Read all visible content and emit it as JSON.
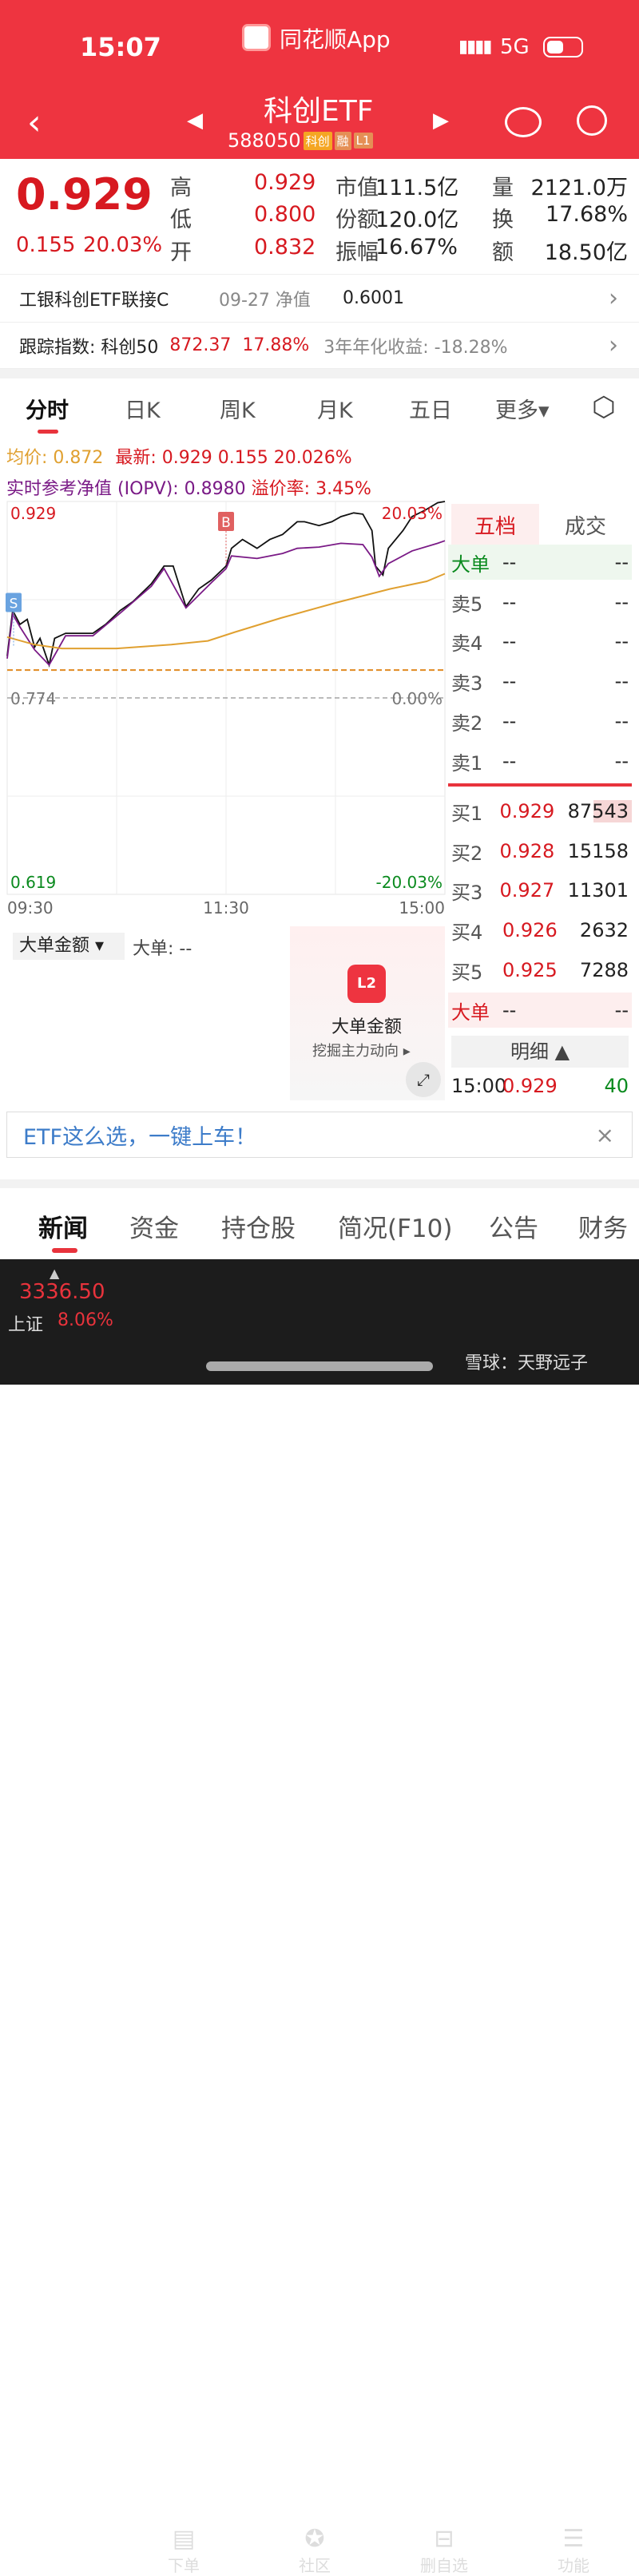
{
  "status": {
    "time": "15:07",
    "app": "同花顺App",
    "network": "5G"
  },
  "header": {
    "title": "科创ETF",
    "code": "588050",
    "tags": [
      "科创",
      "融",
      "L1"
    ]
  },
  "quote": {
    "price": "0.929",
    "change": "0.155",
    "change_pct": "20.03%",
    "stats": [
      [
        "高",
        "0.929",
        "市值",
        "111.5亿",
        "量",
        "2121.0万"
      ],
      [
        "低",
        "0.800",
        "份额",
        "120.0亿",
        "换",
        "17.68%"
      ],
      [
        "开",
        "0.832",
        "振幅",
        "16.67%",
        "额",
        "18.50亿"
      ]
    ]
  },
  "link_fund": {
    "name": "工银科创ETF联接C",
    "date": "09-27 净值",
    "nav": "0.6001"
  },
  "tracking": {
    "label": "跟踪指数: 科创50",
    "value": "872.37",
    "pct": "17.88%",
    "annual": "3年年化收益: -18.28%"
  },
  "chart_tabs": [
    "分时",
    "日K",
    "周K",
    "月K",
    "五日",
    "更多▾"
  ],
  "info": {
    "avg": "均价: 0.872",
    "latest": "最新: 0.929  0.155  20.026%",
    "iopv": "实时参考净值 (IOPV): 0.8980",
    "premium": "溢价率: 3.45%"
  },
  "chart_data": {
    "type": "line",
    "x_unit": "minutes since 09:30",
    "ylim": [
      0.619,
      0.929
    ],
    "y_labels": {
      "top": "0.929",
      "mid": "0.774",
      "bottom": "0.619"
    },
    "pct_labels": {
      "top": "20.03%",
      "mid": "0.00%",
      "bottom": "-20.03%"
    },
    "x_labels": [
      "09:30",
      "11:30",
      "15:00"
    ],
    "ref_line": 0.796,
    "markers": [
      {
        "label": "S",
        "t": 0,
        "p": 0.814
      },
      {
        "label": "B",
        "t": 120,
        "p": 0.878
      }
    ],
    "series": [
      {
        "key": "price",
        "color": "#111111",
        "points": [
          [
            0,
            0.807
          ],
          [
            3,
            0.843
          ],
          [
            7,
            0.832
          ],
          [
            11,
            0.836
          ],
          [
            15,
            0.814
          ],
          [
            18,
            0.821
          ],
          [
            23,
            0.8
          ],
          [
            26,
            0.821
          ],
          [
            32,
            0.825
          ],
          [
            40,
            0.825
          ],
          [
            47,
            0.825
          ],
          [
            54,
            0.832
          ],
          [
            62,
            0.843
          ],
          [
            69,
            0.85
          ],
          [
            79,
            0.864
          ],
          [
            86,
            0.878
          ],
          [
            91,
            0.878
          ],
          [
            98,
            0.846
          ],
          [
            105,
            0.86
          ],
          [
            112,
            0.867
          ],
          [
            120,
            0.878
          ],
          [
            123,
            0.892
          ],
          [
            129,
            0.899
          ],
          [
            137,
            0.892
          ],
          [
            144,
            0.899
          ],
          [
            151,
            0.903
          ],
          [
            159,
            0.913
          ],
          [
            163,
            0.913
          ],
          [
            171,
            0.91
          ],
          [
            178,
            0.913
          ],
          [
            183,
            0.917
          ],
          [
            190,
            0.92
          ],
          [
            195,
            0.919
          ],
          [
            200,
            0.906
          ],
          [
            202,
            0.878
          ],
          [
            206,
            0.871
          ],
          [
            209,
            0.892
          ],
          [
            217,
            0.906
          ],
          [
            222,
            0.917
          ],
          [
            229,
            0.922
          ],
          [
            236,
            0.928
          ],
          [
            240,
            0.929
          ]
        ]
      },
      {
        "key": "iopv",
        "color": "#7a1a86",
        "points": [
          [
            0,
            0.805
          ],
          [
            3,
            0.84
          ],
          [
            7,
            0.83
          ],
          [
            15,
            0.812
          ],
          [
            23,
            0.8
          ],
          [
            32,
            0.823
          ],
          [
            47,
            0.823
          ],
          [
            62,
            0.841
          ],
          [
            79,
            0.862
          ],
          [
            86,
            0.876
          ],
          [
            98,
            0.845
          ],
          [
            112,
            0.865
          ],
          [
            120,
            0.876
          ],
          [
            123,
            0.886
          ],
          [
            137,
            0.884
          ],
          [
            151,
            0.888
          ],
          [
            159,
            0.892
          ],
          [
            171,
            0.893
          ],
          [
            183,
            0.896
          ],
          [
            195,
            0.895
          ],
          [
            200,
            0.885
          ],
          [
            204,
            0.87
          ],
          [
            209,
            0.88
          ],
          [
            222,
            0.89
          ],
          [
            236,
            0.896
          ],
          [
            240,
            0.898
          ]
        ]
      },
      {
        "key": "avg",
        "color": "#e0a030",
        "points": [
          [
            0,
            0.822
          ],
          [
            15,
            0.816
          ],
          [
            30,
            0.813
          ],
          [
            60,
            0.813
          ],
          [
            90,
            0.816
          ],
          [
            110,
            0.819
          ],
          [
            125,
            0.826
          ],
          [
            150,
            0.837
          ],
          [
            180,
            0.849
          ],
          [
            210,
            0.86
          ],
          [
            230,
            0.866
          ],
          [
            240,
            0.872
          ]
        ]
      }
    ]
  },
  "orderbook": {
    "tabs": [
      "五档",
      "成交"
    ],
    "big_top": [
      "大单",
      "--",
      "--"
    ],
    "asks": [
      [
        "卖5",
        "--",
        "--"
      ],
      [
        "卖4",
        "--",
        "--"
      ],
      [
        "卖3",
        "--",
        "--"
      ],
      [
        "卖2",
        "--",
        "--"
      ],
      [
        "卖1",
        "--",
        "--"
      ]
    ],
    "bids": [
      [
        "买1",
        "0.929",
        "87543"
      ],
      [
        "买2",
        "0.928",
        "15158"
      ],
      [
        "买3",
        "0.927",
        "11301"
      ],
      [
        "买4",
        "0.926",
        "2632"
      ],
      [
        "买5",
        "0.925",
        "7288"
      ]
    ],
    "big_bottom": [
      "大单",
      "--",
      "--"
    ],
    "detail": "明细 ▲",
    "last_trade": [
      "15:00",
      "0.929",
      "40"
    ]
  },
  "sub_chart": {
    "selector": "大单金额 ▾",
    "value": "大单: --",
    "promo_title": "大单金额",
    "promo_sub": "挖掘主力动向 ▸",
    "badge": "L2"
  },
  "banner": {
    "text": "ETF这么选，一键上车！"
  },
  "bottom_tabs": [
    "新闻",
    "资金",
    "持仓股",
    "简况(F10)",
    "公告",
    "财务"
  ],
  "navbar": {
    "index_value": "3336.50",
    "index_name": "上证",
    "index_pct": "8.06%",
    "items": [
      "下单",
      "社区",
      "删自选",
      "功能"
    ]
  },
  "watermark": "雪球：天野远子"
}
